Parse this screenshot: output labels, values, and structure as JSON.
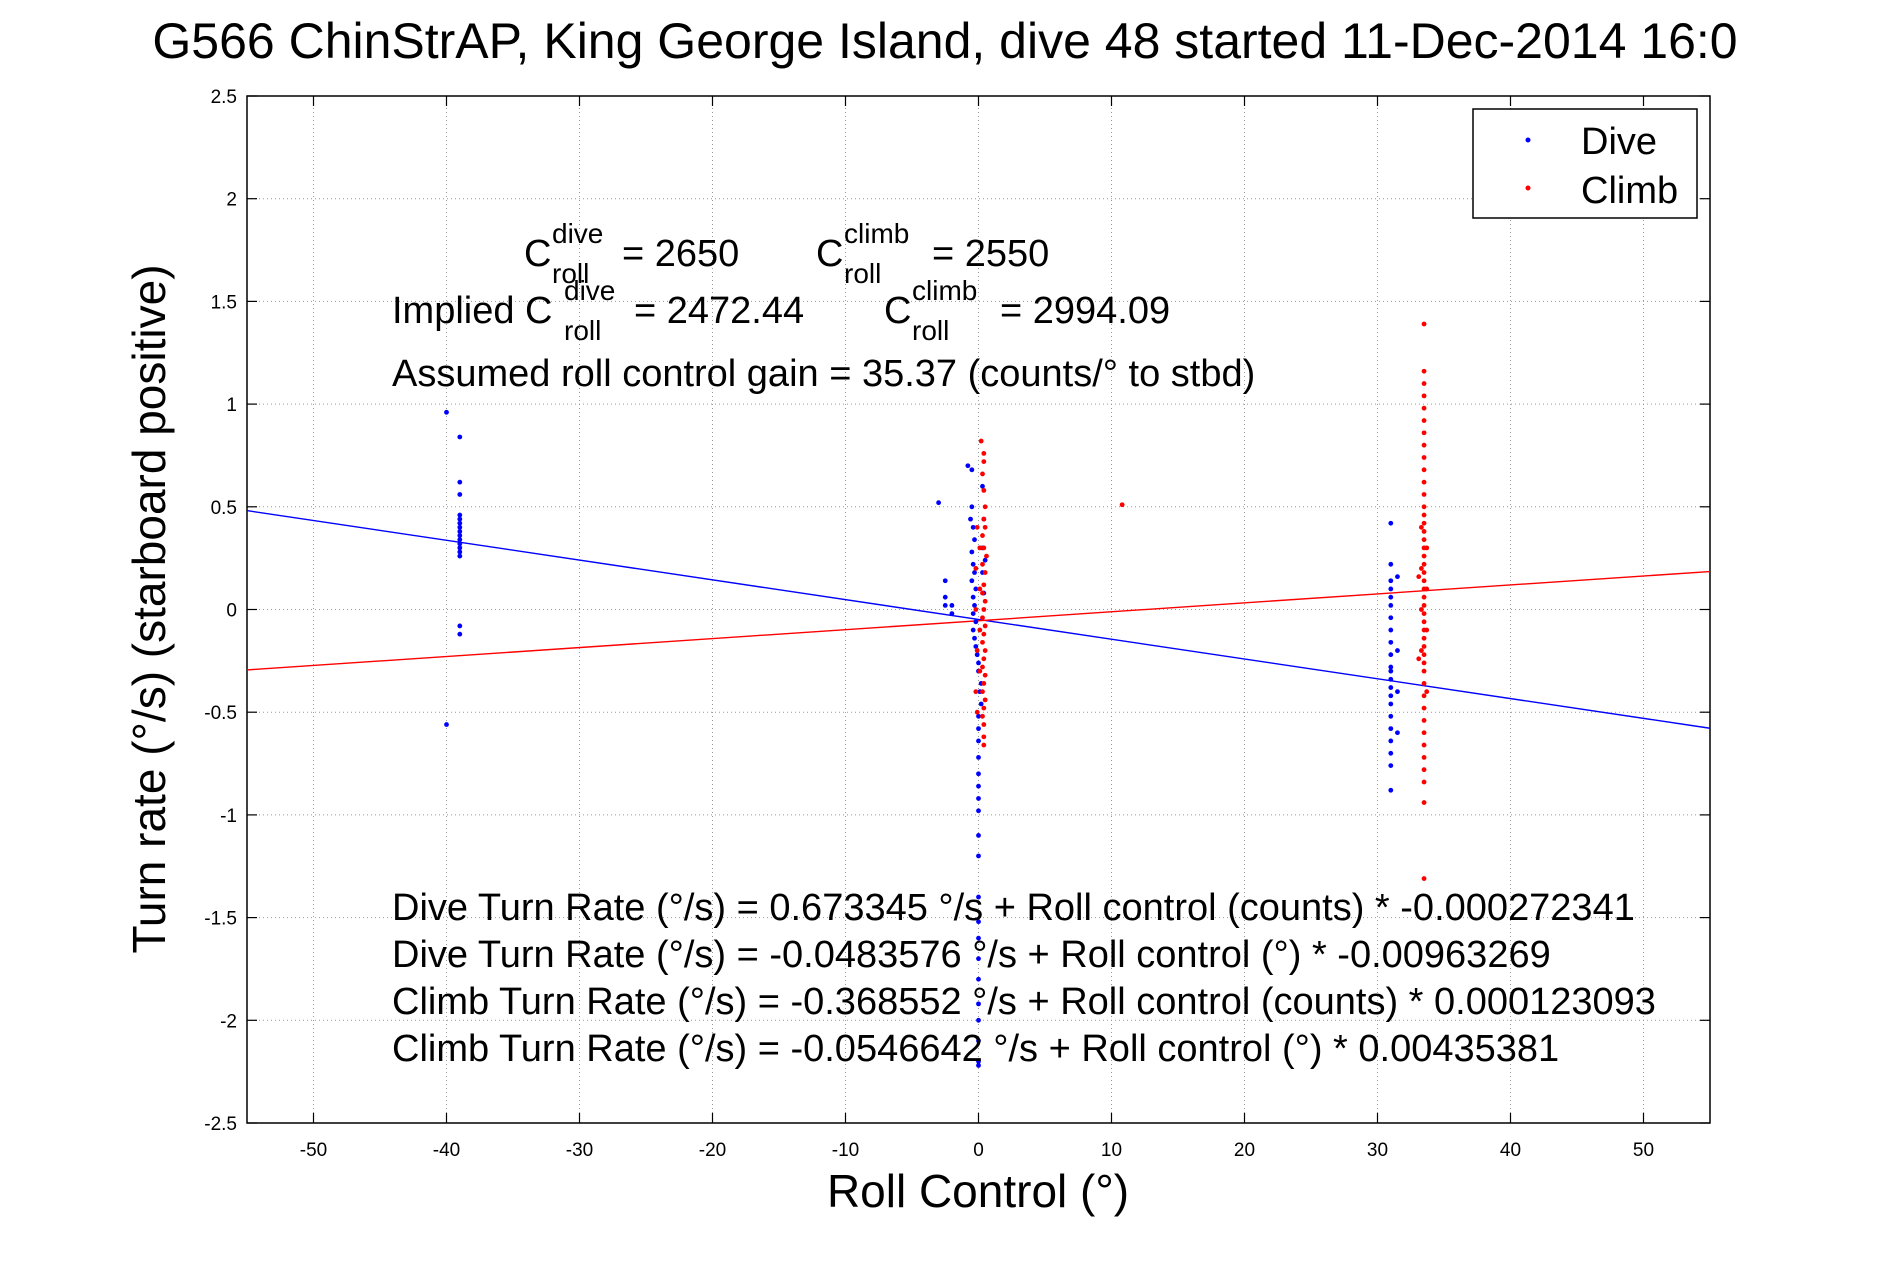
{
  "chart_data": {
    "type": "scatter",
    "title": "G566 ChinStrAP, King George Island, dive 48 started 11-Dec-2014 16:0",
    "xlabel": "Roll Control (°)",
    "ylabel": "Turn rate (°/s)  (starboard positive)",
    "xlim": [
      -55,
      55
    ],
    "ylim": [
      -2.5,
      2.5
    ],
    "x_ticks": [
      -50,
      -40,
      -30,
      -20,
      -10,
      0,
      10,
      20,
      30,
      40,
      50
    ],
    "y_ticks": [
      -2.5,
      -2,
      -1.5,
      -1,
      -0.5,
      0,
      0.5,
      1,
      1.5,
      2,
      2.5
    ],
    "x_tick_labels": [
      "-50",
      "-40",
      "-30",
      "-20",
      "-10",
      "0",
      "10",
      "20",
      "30",
      "40",
      "50"
    ],
    "y_tick_labels": [
      "-2.5",
      "-2",
      "-1.5",
      "-1",
      "-0.5",
      "0",
      "0.5",
      "1",
      "1.5",
      "2",
      "2.5"
    ],
    "grid": true,
    "legend_position": "top-right",
    "series": [
      {
        "name": "Dive",
        "color": "#0000ff",
        "points": [
          [
            -40,
            0.96
          ],
          [
            -40,
            -0.56
          ],
          [
            -39,
            0.84
          ],
          [
            -39,
            0.62
          ],
          [
            -39,
            0.56
          ],
          [
            -39,
            0.46
          ],
          [
            -39,
            0.44
          ],
          [
            -39,
            0.42
          ],
          [
            -39,
            0.4
          ],
          [
            -39,
            0.38
          ],
          [
            -39,
            0.36
          ],
          [
            -39,
            0.34
          ],
          [
            -39,
            0.32
          ],
          [
            -39,
            0.3
          ],
          [
            -39,
            0.28
          ],
          [
            -39,
            0.26
          ],
          [
            -39,
            -0.08
          ],
          [
            -39,
            -0.12
          ],
          [
            -3,
            0.52
          ],
          [
            -2.5,
            0.14
          ],
          [
            -2.5,
            0.06
          ],
          [
            -2.5,
            0.02
          ],
          [
            -2,
            0.02
          ],
          [
            -2,
            -0.02
          ],
          [
            -0.8,
            0.7
          ],
          [
            -0.5,
            0.68
          ],
          [
            -0.5,
            0.5
          ],
          [
            -0.6,
            0.44
          ],
          [
            -0.4,
            0.4
          ],
          [
            -0.3,
            0.34
          ],
          [
            -0.5,
            0.28
          ],
          [
            -0.4,
            0.22
          ],
          [
            -0.3,
            0.18
          ],
          [
            -0.5,
            0.14
          ],
          [
            -0.2,
            0.1
          ],
          [
            -0.4,
            0.06
          ],
          [
            -0.3,
            0.02
          ],
          [
            -0.4,
            -0.02
          ],
          [
            -0.2,
            -0.06
          ],
          [
            -0.4,
            -0.1
          ],
          [
            -0.3,
            -0.14
          ],
          [
            -0.2,
            -0.18
          ],
          [
            -0.1,
            -0.22
          ],
          [
            0,
            -0.26
          ],
          [
            0,
            -0.3
          ],
          [
            0.2,
            -0.36
          ],
          [
            0.1,
            -0.4
          ],
          [
            0.3,
            0.6
          ],
          [
            0.4,
            0.44
          ],
          [
            0.3,
            0.3
          ],
          [
            0.5,
            0.24
          ],
          [
            0.3,
            0.18
          ],
          [
            0.4,
            0.08
          ],
          [
            0.2,
            -0.46
          ],
          [
            0,
            -0.52
          ],
          [
            0,
            -0.58
          ],
          [
            0,
            -0.64
          ],
          [
            0,
            -0.72
          ],
          [
            0,
            -0.8
          ],
          [
            0,
            -0.86
          ],
          [
            0,
            -0.92
          ],
          [
            0,
            -0.98
          ],
          [
            0,
            -1.1
          ],
          [
            0,
            -1.2
          ],
          [
            0,
            -1.4
          ],
          [
            0,
            -1.52
          ],
          [
            0,
            -1.6
          ],
          [
            0,
            -1.7
          ],
          [
            0,
            -1.8
          ],
          [
            0,
            -1.92
          ],
          [
            0,
            -2.0
          ],
          [
            0,
            -2.1
          ],
          [
            0,
            -2.2
          ],
          [
            0,
            -2.22
          ],
          [
            31,
            0.42
          ],
          [
            31,
            0.22
          ],
          [
            31,
            0.14
          ],
          [
            31,
            0.1
          ],
          [
            31,
            0.06
          ],
          [
            31,
            0.02
          ],
          [
            31,
            -0.04
          ],
          [
            31,
            -0.1
          ],
          [
            31,
            -0.16
          ],
          [
            31,
            -0.22
          ],
          [
            31,
            -0.28
          ],
          [
            31,
            -0.3
          ],
          [
            31,
            -0.34
          ],
          [
            31,
            -0.38
          ],
          [
            31,
            -0.42
          ],
          [
            31,
            -0.46
          ],
          [
            31,
            -0.52
          ],
          [
            31,
            -0.58
          ],
          [
            31,
            -0.64
          ],
          [
            31,
            -0.7
          ],
          [
            31,
            -0.76
          ],
          [
            31,
            -0.88
          ],
          [
            31.5,
            0.16
          ],
          [
            31.5,
            -0.2
          ],
          [
            31.5,
            -0.4
          ],
          [
            31.5,
            -0.6
          ]
        ]
      },
      {
        "name": "Climb",
        "color": "#ff0000",
        "points": [
          [
            0.2,
            0.82
          ],
          [
            0.4,
            0.76
          ],
          [
            0.4,
            0.72
          ],
          [
            0.3,
            0.66
          ],
          [
            0.4,
            0.58
          ],
          [
            0.5,
            0.5
          ],
          [
            0.4,
            0.44
          ],
          [
            0.5,
            0.4
          ],
          [
            0.3,
            0.36
          ],
          [
            0.4,
            0.3
          ],
          [
            0.6,
            0.26
          ],
          [
            0.3,
            0.22
          ],
          [
            0.5,
            0.18
          ],
          [
            0.4,
            0.12
          ],
          [
            0.3,
            0.08
          ],
          [
            0.5,
            0.04
          ],
          [
            0.4,
            0.0
          ],
          [
            0.3,
            -0.04
          ],
          [
            0.5,
            -0.08
          ],
          [
            0.4,
            -0.12
          ],
          [
            0.3,
            -0.16
          ],
          [
            0.5,
            -0.2
          ],
          [
            0.4,
            -0.24
          ],
          [
            0.3,
            -0.28
          ],
          [
            0.5,
            -0.32
          ],
          [
            0.4,
            -0.36
          ],
          [
            0.3,
            -0.4
          ],
          [
            0.5,
            -0.44
          ],
          [
            0.4,
            -0.48
          ],
          [
            0.3,
            -0.52
          ],
          [
            0.4,
            -0.56
          ],
          [
            0.4,
            -0.62
          ],
          [
            0.4,
            -0.66
          ],
          [
            -0.1,
            0.4
          ],
          [
            -0.2,
            0.2
          ],
          [
            -0.2,
            0.0
          ],
          [
            -0.1,
            -0.2
          ],
          [
            -0.2,
            -0.4
          ],
          [
            -0.1,
            -0.5
          ],
          [
            0.1,
            0.3
          ],
          [
            0.1,
            0.1
          ],
          [
            0.1,
            -0.1
          ],
          [
            0.1,
            -0.3
          ],
          [
            10.8,
            0.51
          ],
          [
            33.5,
            1.39
          ],
          [
            33.5,
            1.16
          ],
          [
            33.5,
            1.1
          ],
          [
            33.5,
            1.04
          ],
          [
            33.5,
            0.98
          ],
          [
            33.5,
            0.92
          ],
          [
            33.5,
            0.86
          ],
          [
            33.5,
            0.8
          ],
          [
            33.5,
            0.74
          ],
          [
            33.5,
            0.68
          ],
          [
            33.5,
            0.62
          ],
          [
            33.5,
            0.56
          ],
          [
            33.5,
            0.5
          ],
          [
            33.5,
            0.46
          ],
          [
            33.5,
            0.42
          ],
          [
            33.5,
            0.38
          ],
          [
            33.5,
            0.34
          ],
          [
            33.5,
            0.3
          ],
          [
            33.5,
            0.26
          ],
          [
            33.5,
            0.22
          ],
          [
            33.5,
            0.18
          ],
          [
            33.5,
            0.14
          ],
          [
            33.5,
            0.1
          ],
          [
            33.5,
            0.06
          ],
          [
            33.5,
            0.02
          ],
          [
            33.5,
            -0.02
          ],
          [
            33.5,
            -0.06
          ],
          [
            33.5,
            -0.1
          ],
          [
            33.5,
            -0.14
          ],
          [
            33.5,
            -0.18
          ],
          [
            33.5,
            -0.22
          ],
          [
            33.5,
            -0.26
          ],
          [
            33.5,
            -0.3
          ],
          [
            33.5,
            -0.36
          ],
          [
            33.5,
            -0.42
          ],
          [
            33.5,
            -0.48
          ],
          [
            33.5,
            -0.54
          ],
          [
            33.5,
            -0.6
          ],
          [
            33.5,
            -0.66
          ],
          [
            33.5,
            -0.72
          ],
          [
            33.5,
            -0.78
          ],
          [
            33.5,
            -0.84
          ],
          [
            33.5,
            -0.94
          ],
          [
            33.5,
            -1.31
          ],
          [
            33.3,
            0.4
          ],
          [
            33.3,
            0.2
          ],
          [
            33.3,
            0.0
          ],
          [
            33.3,
            -0.2
          ],
          [
            33.7,
            0.3
          ],
          [
            33.7,
            0.1
          ],
          [
            33.7,
            -0.1
          ],
          [
            33.7,
            -0.4
          ],
          [
            33.1,
            0.16
          ],
          [
            33.1,
            -0.24
          ]
        ]
      }
    ],
    "fit_lines": [
      {
        "series": "Dive",
        "color": "#0000ff",
        "intercept": -0.0483576,
        "slope": -0.00963269
      },
      {
        "series": "Climb",
        "color": "#ff0000",
        "intercept": -0.0546642,
        "slope": 0.00435381
      }
    ]
  },
  "annotations": {
    "c_roll_line": {
      "c_symbol_1": "C",
      "sup_1": "dive",
      "sub_1": "roll",
      "value_1": "= 2650",
      "c_symbol_2": "C",
      "sup_2": "climb",
      "sub_2": "roll",
      "value_2": "= 2550"
    },
    "implied_line": {
      "prefix": "Implied C",
      "sup_1": "dive",
      "sub_1": "roll",
      "value_1": "= 2472.44",
      "c_symbol_2": "C",
      "sup_2": "climb",
      "sub_2": "roll",
      "value_2": "= 2994.09"
    },
    "gain_line": "Assumed roll control gain = 35.37 (counts/° to stbd)",
    "equations": [
      "Dive Turn Rate (°/s) = 0.673345 °/s + Roll control (counts) * -0.000272341",
      "Dive Turn Rate (°/s) = -0.0483576 °/s + Roll control (°) * -0.00963269",
      "Climb Turn Rate (°/s) = -0.368552 °/s + Roll control (counts) * 0.000123093",
      "Climb Turn Rate (°/s) = -0.0546642 °/s + Roll control (°) * 0.00435381"
    ]
  }
}
